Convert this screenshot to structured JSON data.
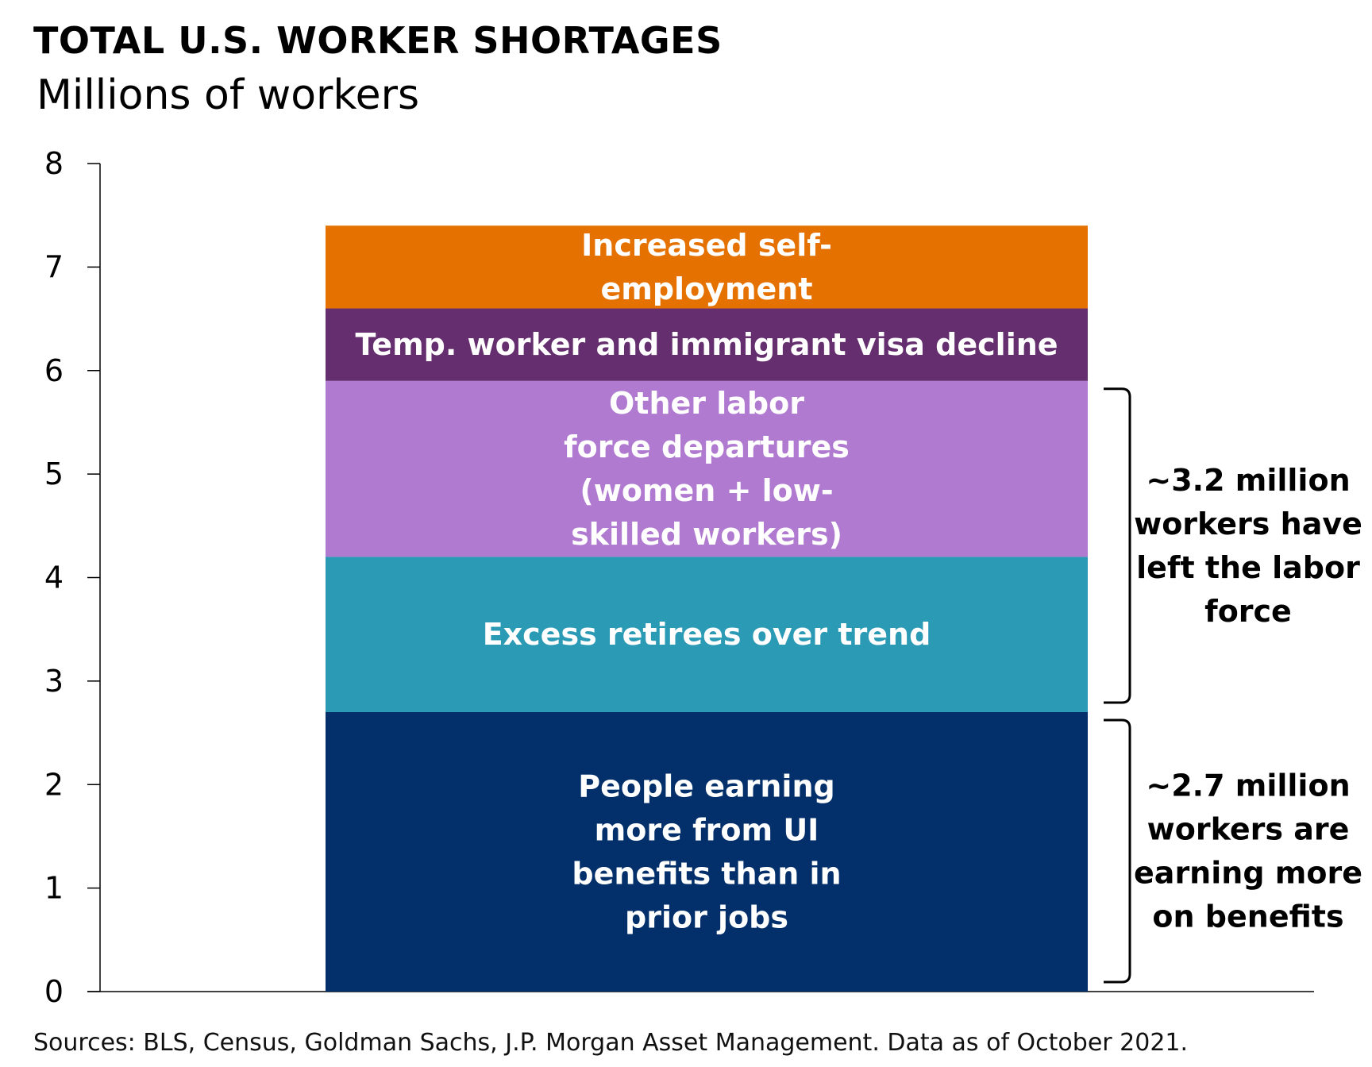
{
  "chart_data": {
    "type": "bar",
    "stacked": true,
    "title": "TOTAL U.S. WORKER SHORTAGES",
    "subtitle": "Millions of workers",
    "ylim": [
      0,
      8
    ],
    "yticks": [
      "0",
      "1",
      "2",
      "3",
      "4",
      "5",
      "6",
      "7",
      "8"
    ],
    "series": [
      {
        "name": "People earning more from UI benefits than in prior jobs",
        "lines": [
          "People earning",
          "more from UI",
          "benefits than in",
          "prior jobs"
        ],
        "value": 2.7,
        "color": "#03306b"
      },
      {
        "name": "Excess retirees over trend",
        "lines": [
          "Excess retirees over trend"
        ],
        "value": 1.5,
        "color": "#2b9ab5"
      },
      {
        "name": "Other labor force departures (women + low-skilled workers)",
        "lines": [
          "Other labor",
          "force departures",
          "(women + low-",
          "skilled workers)"
        ],
        "value": 1.7,
        "color": "#b07ad0"
      },
      {
        "name": "Temp. worker and immigrant visa decline",
        "lines": [
          "Temp. worker and immigrant visa decline"
        ],
        "value": 0.7,
        "color": "#652e6e"
      },
      {
        "name": "Increased self-employment",
        "lines": [
          "Increased self-",
          "employment"
        ],
        "value": 0.8,
        "color": "#e57200"
      }
    ],
    "annotations": [
      {
        "from": 2.7,
        "to": 5.9,
        "lines": [
          "~3.2 million",
          "workers have",
          "left the labor",
          "force"
        ]
      },
      {
        "from": 0,
        "to": 2.7,
        "lines": [
          "~2.7 million",
          "workers are",
          "earning more",
          "on benefits"
        ]
      }
    ]
  },
  "footer": {
    "source": "Sources: BLS, Census, Goldman Sachs, J.P. Morgan Asset Management. Data as of October 2021."
  }
}
